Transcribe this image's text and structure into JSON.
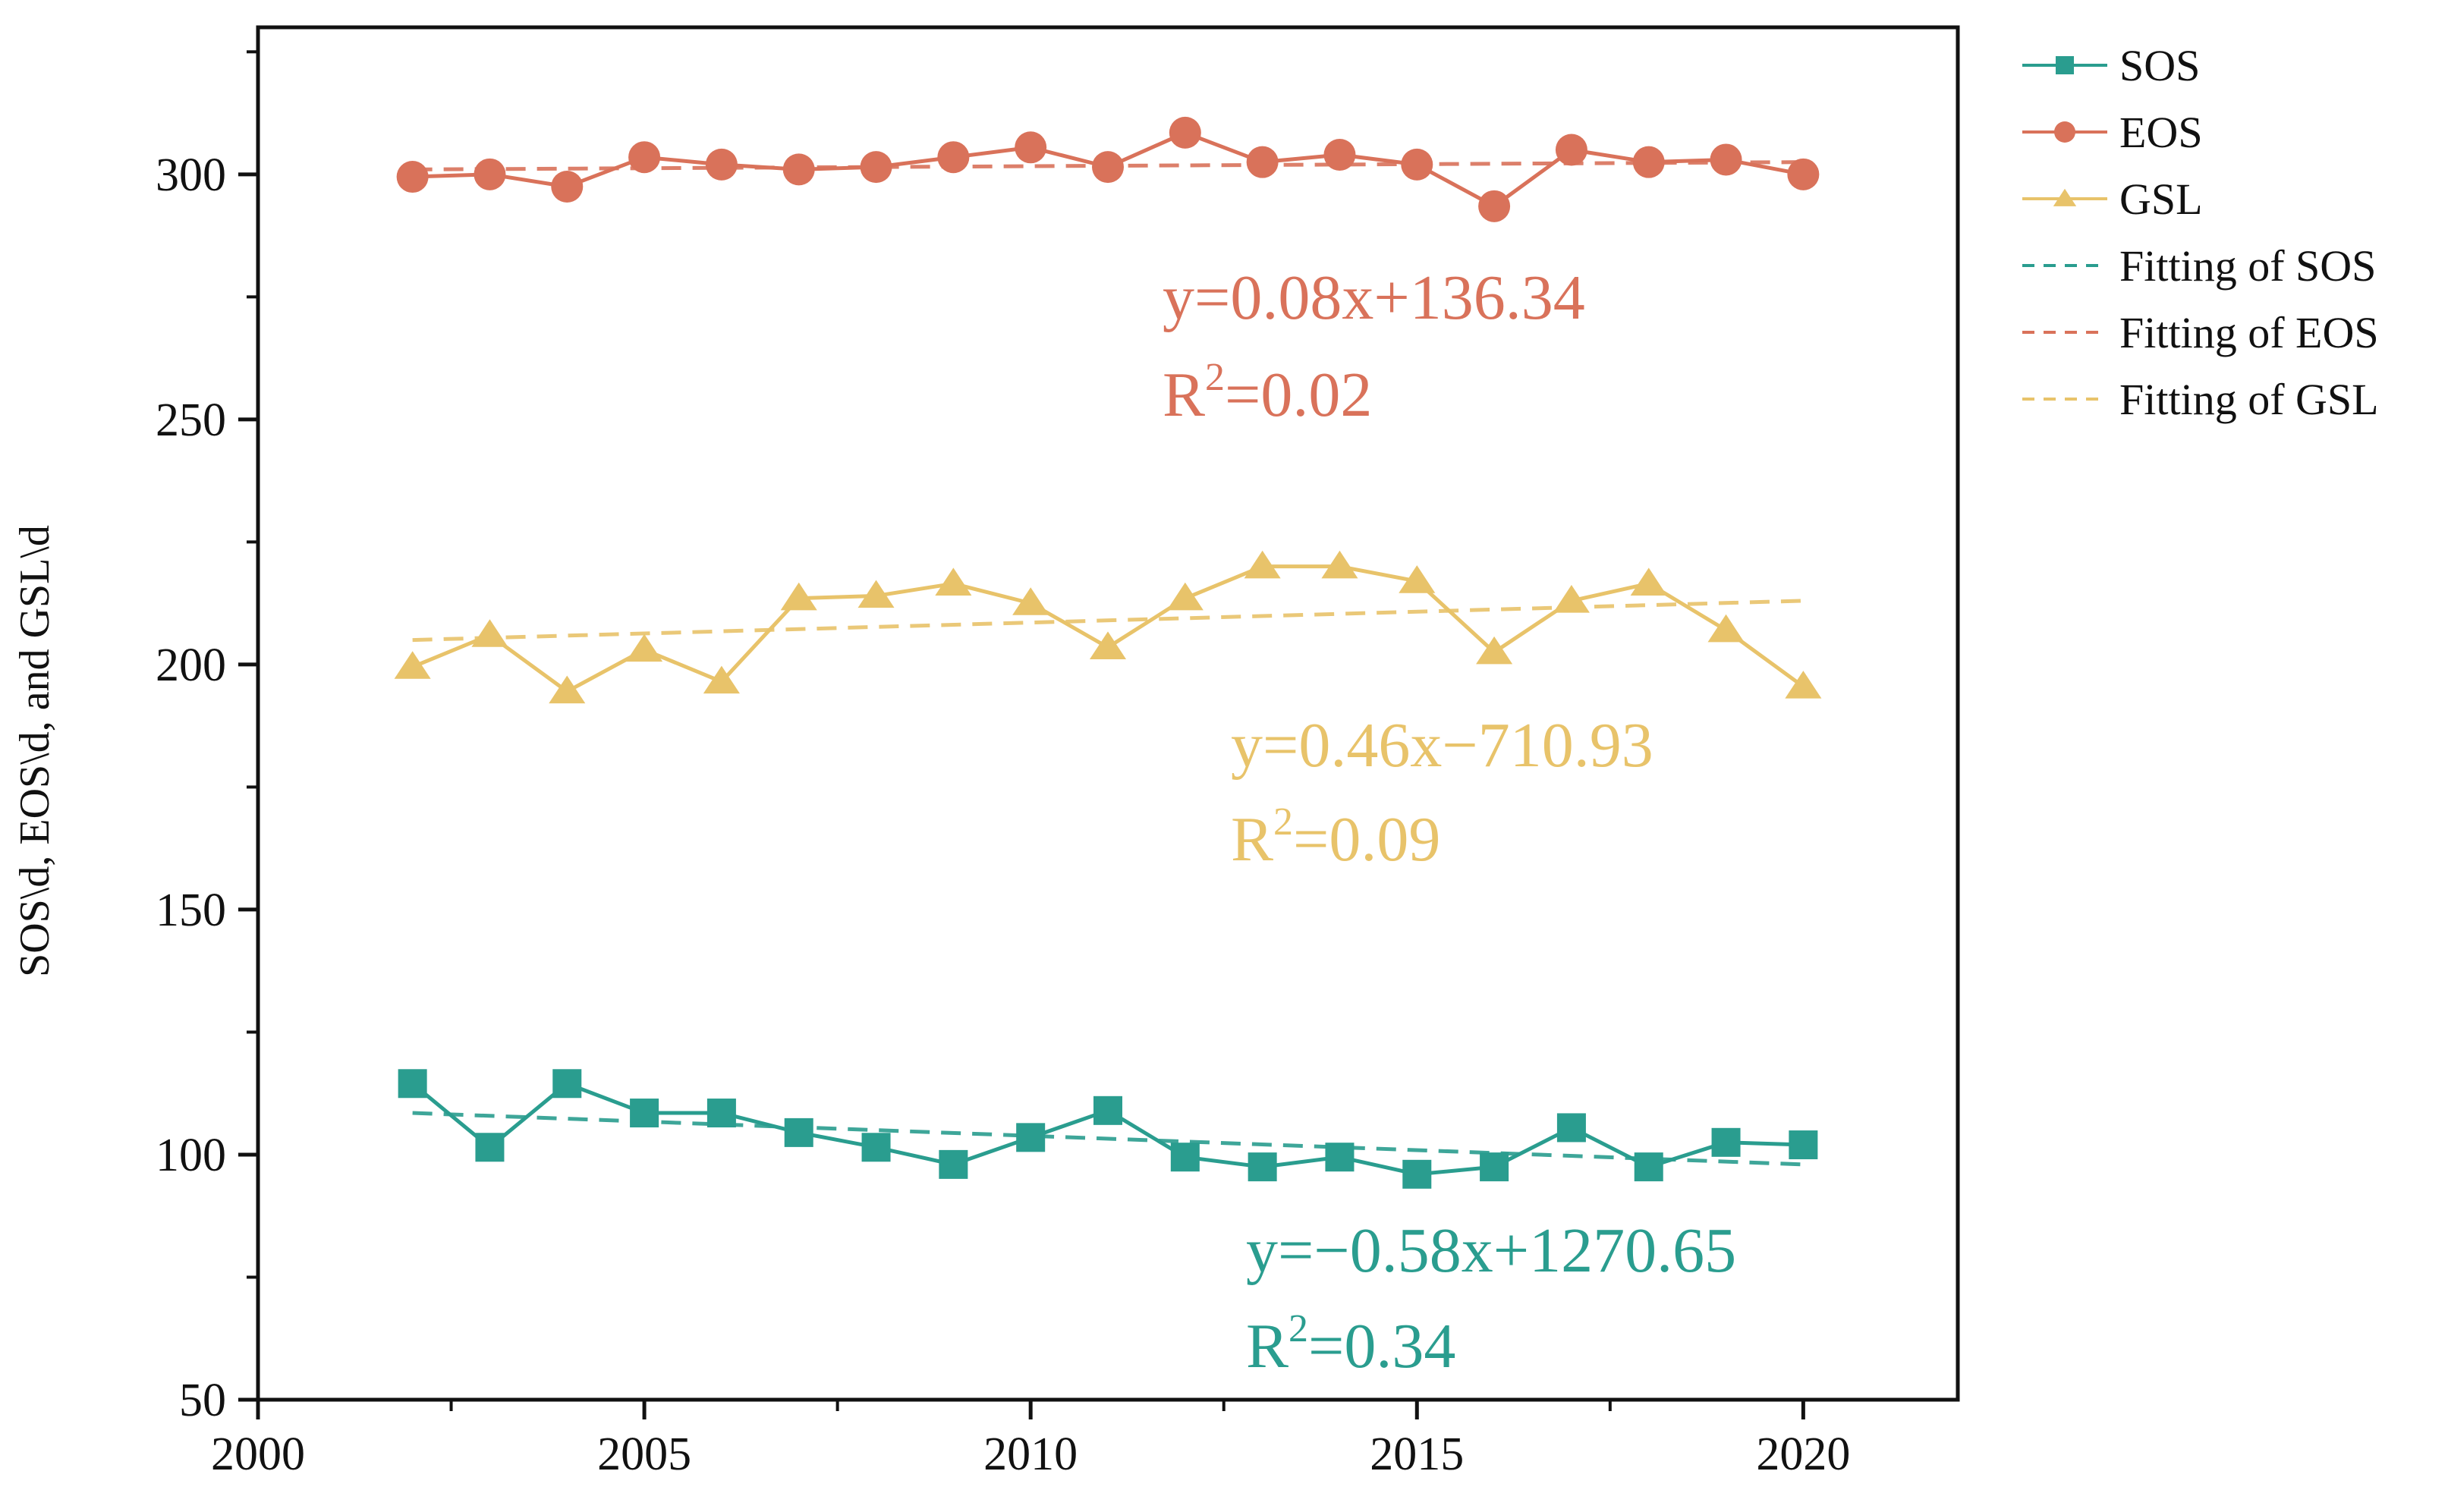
{
  "chart_data": {
    "type": "line",
    "title": "",
    "xlabel": "",
    "ylabel": "SOS\\d, EOS\\d, and GSL\\d",
    "xlim": [
      2000,
      2022
    ],
    "ylim": [
      50,
      330
    ],
    "xticks": [
      2000,
      2005,
      2010,
      2015,
      2020
    ],
    "yticks": [
      50,
      100,
      150,
      200,
      250,
      300
    ],
    "x": [
      2002,
      2003,
      2004,
      2005,
      2006,
      2007,
      2008,
      2009,
      2010,
      2011,
      2012,
      2013,
      2014,
      2015,
      2016,
      2017,
      2018,
      2019,
      2020
    ],
    "series": [
      {
        "key": "sos",
        "name": "SOS",
        "marker": "square",
        "color": "#2a9d8f",
        "values": [
          114.5,
          101.5,
          114.5,
          108.5,
          108.5,
          104.5,
          101.5,
          98,
          103.5,
          109,
          99.5,
          97.5,
          99.5,
          96,
          97.5,
          105.5,
          97.5,
          102.5,
          102
        ]
      },
      {
        "key": "eos",
        "name": "EOS",
        "marker": "circle",
        "color": "#d9725a",
        "values": [
          299.5,
          300,
          297.5,
          303.5,
          302,
          301,
          301.5,
          303.5,
          305.5,
          301.5,
          308.5,
          302.5,
          304,
          302,
          293.5,
          305,
          302.5,
          303,
          300
        ]
      },
      {
        "key": "gsl",
        "name": "GSL",
        "marker": "triangle",
        "color": "#e8c36a",
        "values": [
          199.5,
          206,
          194.5,
          203,
          196.5,
          213.5,
          214,
          216.5,
          212.5,
          203.5,
          213.5,
          220,
          220,
          217,
          202.5,
          213,
          216.5,
          207,
          195.5
        ]
      }
    ],
    "fits": [
      {
        "key": "sos",
        "name": "Fitting of SOS",
        "color": "#2a9d8f",
        "x": [
          2002,
          2020
        ],
        "y": [
          108.5,
          98
        ]
      },
      {
        "key": "eos",
        "name": "Fitting of EOS",
        "color": "#d9725a",
        "x": [
          2002,
          2020
        ],
        "y": [
          301,
          302.5
        ]
      },
      {
        "key": "gsl",
        "name": "Fitting of GSL",
        "color": "#e8c36a",
        "x": [
          2002,
          2020
        ],
        "y": [
          205,
          213
        ]
      }
    ],
    "annotations": [
      {
        "key": "eos",
        "equation": "y=0.08x+136.34",
        "r2_prefix": "R",
        "r2_sup": "2",
        "r2_value": "=0.02",
        "color": "#d9725a"
      },
      {
        "key": "gsl",
        "equation": "y=0.46x−710.93",
        "r2_prefix": "R",
        "r2_sup": "2",
        "r2_value": "=0.09",
        "color": "#e8c36a"
      },
      {
        "key": "sos",
        "equation": "y=−0.58x+1270.65",
        "r2_prefix": "R",
        "r2_sup": "2",
        "r2_value": "=0.34",
        "color": "#2a9d8f"
      }
    ],
    "legend": {
      "position": "top-right-outside",
      "entries": [
        {
          "label": "SOS",
          "style": "line-marker",
          "marker": "square",
          "color": "#2a9d8f"
        },
        {
          "label": "EOS",
          "style": "line-marker",
          "marker": "circle",
          "color": "#d9725a"
        },
        {
          "label": "GSL",
          "style": "line-marker",
          "marker": "triangle",
          "color": "#e8c36a"
        },
        {
          "label": "Fitting of SOS",
          "style": "dashed",
          "color": "#2a9d8f"
        },
        {
          "label": "Fitting of EOS",
          "style": "dashed",
          "color": "#d9725a"
        },
        {
          "label": "Fitting of GSL",
          "style": "dashed",
          "color": "#e8c36a"
        }
      ]
    }
  }
}
